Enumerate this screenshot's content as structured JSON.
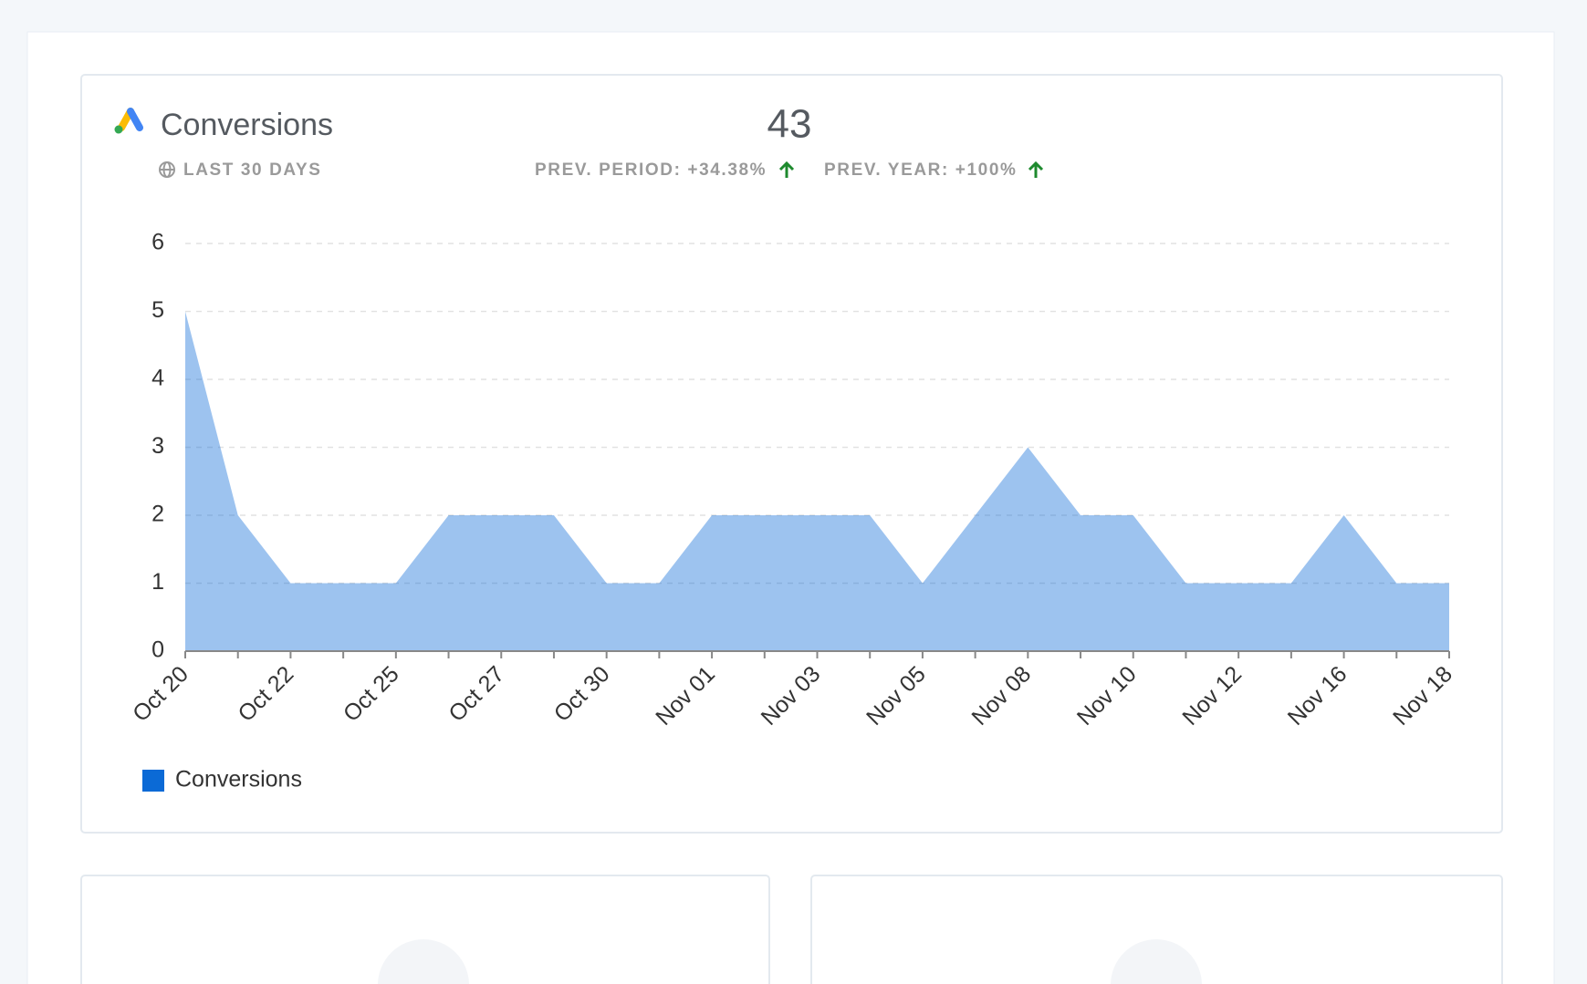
{
  "header": {
    "title": "Conversions",
    "period": "LAST 30 DAYS",
    "total": "43",
    "prev_period": "PREV. PERIOD: +34.38%",
    "prev_year": "PREV. YEAR: +100%"
  },
  "chart_data": {
    "type": "area",
    "categories": [
      "Oct 20",
      null,
      "Oct 22",
      null,
      "Oct 25",
      null,
      "Oct 27",
      null,
      "Oct 30",
      null,
      "Nov 01",
      null,
      "Nov 03",
      null,
      "Nov 05",
      null,
      "Nov 08",
      null,
      "Nov 10",
      null,
      "Nov 12",
      null,
      "Nov 16",
      null,
      "Nov 18"
    ],
    "series": [
      {
        "name": "Conversions",
        "color": "#0b6ad6",
        "values": [
          5,
          2,
          1,
          1,
          1,
          2,
          2,
          2,
          1,
          1,
          2,
          2,
          2,
          2,
          1,
          2,
          3,
          2,
          2,
          1,
          1,
          1,
          2,
          1,
          1
        ]
      }
    ],
    "ylim": [
      0,
      6
    ],
    "yticks": [
      0,
      1,
      2,
      3,
      4,
      5,
      6
    ],
    "grid": true,
    "legend": "bottom-left"
  }
}
